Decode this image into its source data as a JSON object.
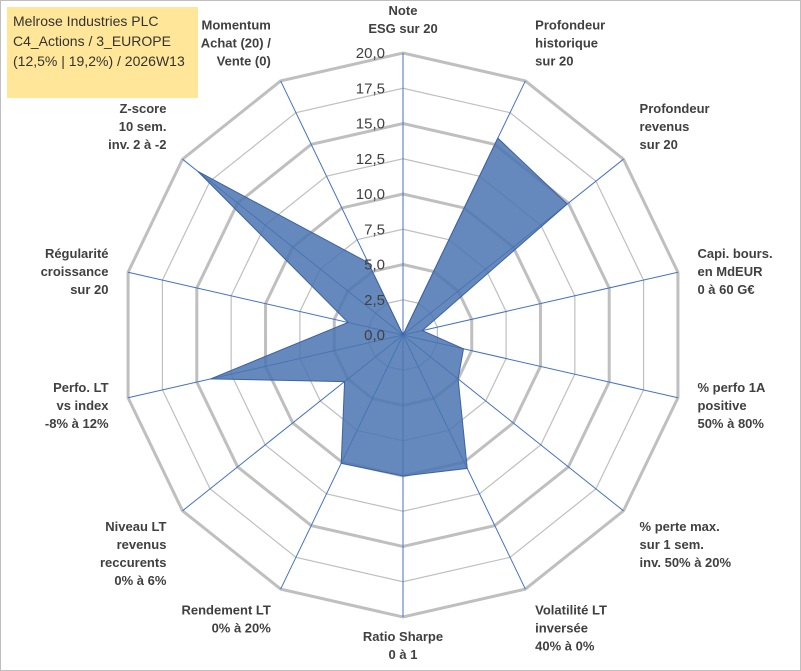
{
  "title_box": {
    "line1": "Melrose Industries PLC",
    "line2": "C4_Actions / 3_EUROPE",
    "line3": "(12,5% | 19,2%) / 2026W13"
  },
  "colors": {
    "grid": "#bfbfbf",
    "spoke": "#4472c4",
    "fill": "#4a74b0",
    "title_bg": "#ffe699"
  },
  "chart_data": {
    "type": "radar",
    "rmin": 0,
    "rmax": 20,
    "tick_step": 2.5,
    "tick_labels": [
      "0,0",
      "2,5",
      "5,0",
      "7,5",
      "10,0",
      "12,5",
      "15,0",
      "17,5",
      "20,0"
    ],
    "axes": [
      {
        "label": [
          "Note",
          "ESG sur 20"
        ],
        "value": 0
      },
      {
        "label": [
          "Profondeur",
          "historique",
          "sur 20"
        ],
        "value": 15.5
      },
      {
        "label": [
          "Profondeur",
          "revenus",
          "sur 20"
        ],
        "value": 14.9
      },
      {
        "label": [
          "Capi. bours.",
          "en MdEUR",
          "0 à 60 G€"
        ],
        "value": 1.4
      },
      {
        "label": [
          "% perfo 1A",
          "positive",
          "50% à 80%"
        ],
        "value": 4.4
      },
      {
        "label": [
          "% perte max.",
          "sur 1 sem.",
          "inv. 50% à 20%"
        ],
        "value": 5.0
      },
      {
        "label": [
          "Volatilité LT",
          "inversée",
          "40% à 0%"
        ],
        "value": 10.5
      },
      {
        "label": [
          "Ratio Sharpe",
          "0 à 1"
        ],
        "value": 10.0
      },
      {
        "label": [
          "Rendement LT",
          "0% à 20%"
        ],
        "value": 10.1
      },
      {
        "label": [
          "Niveau LT",
          "revenus",
          "reccurents",
          "0% à 6%"
        ],
        "value": 5.3
      },
      {
        "label": [
          "Perfo. LT",
          "vs index",
          "-8% à 12%"
        ],
        "value": 14.0
      },
      {
        "label": [
          "Régularité",
          "croissance",
          "sur 20"
        ],
        "value": 4.0
      },
      {
        "label": [
          "Z-score",
          "10 sem.",
          "inv. 2 à -2"
        ],
        "value": 18.6
      },
      {
        "label": [
          "Momentum",
          "Achat (20) /",
          "Vente (0)"
        ],
        "value": 5.7
      }
    ]
  }
}
